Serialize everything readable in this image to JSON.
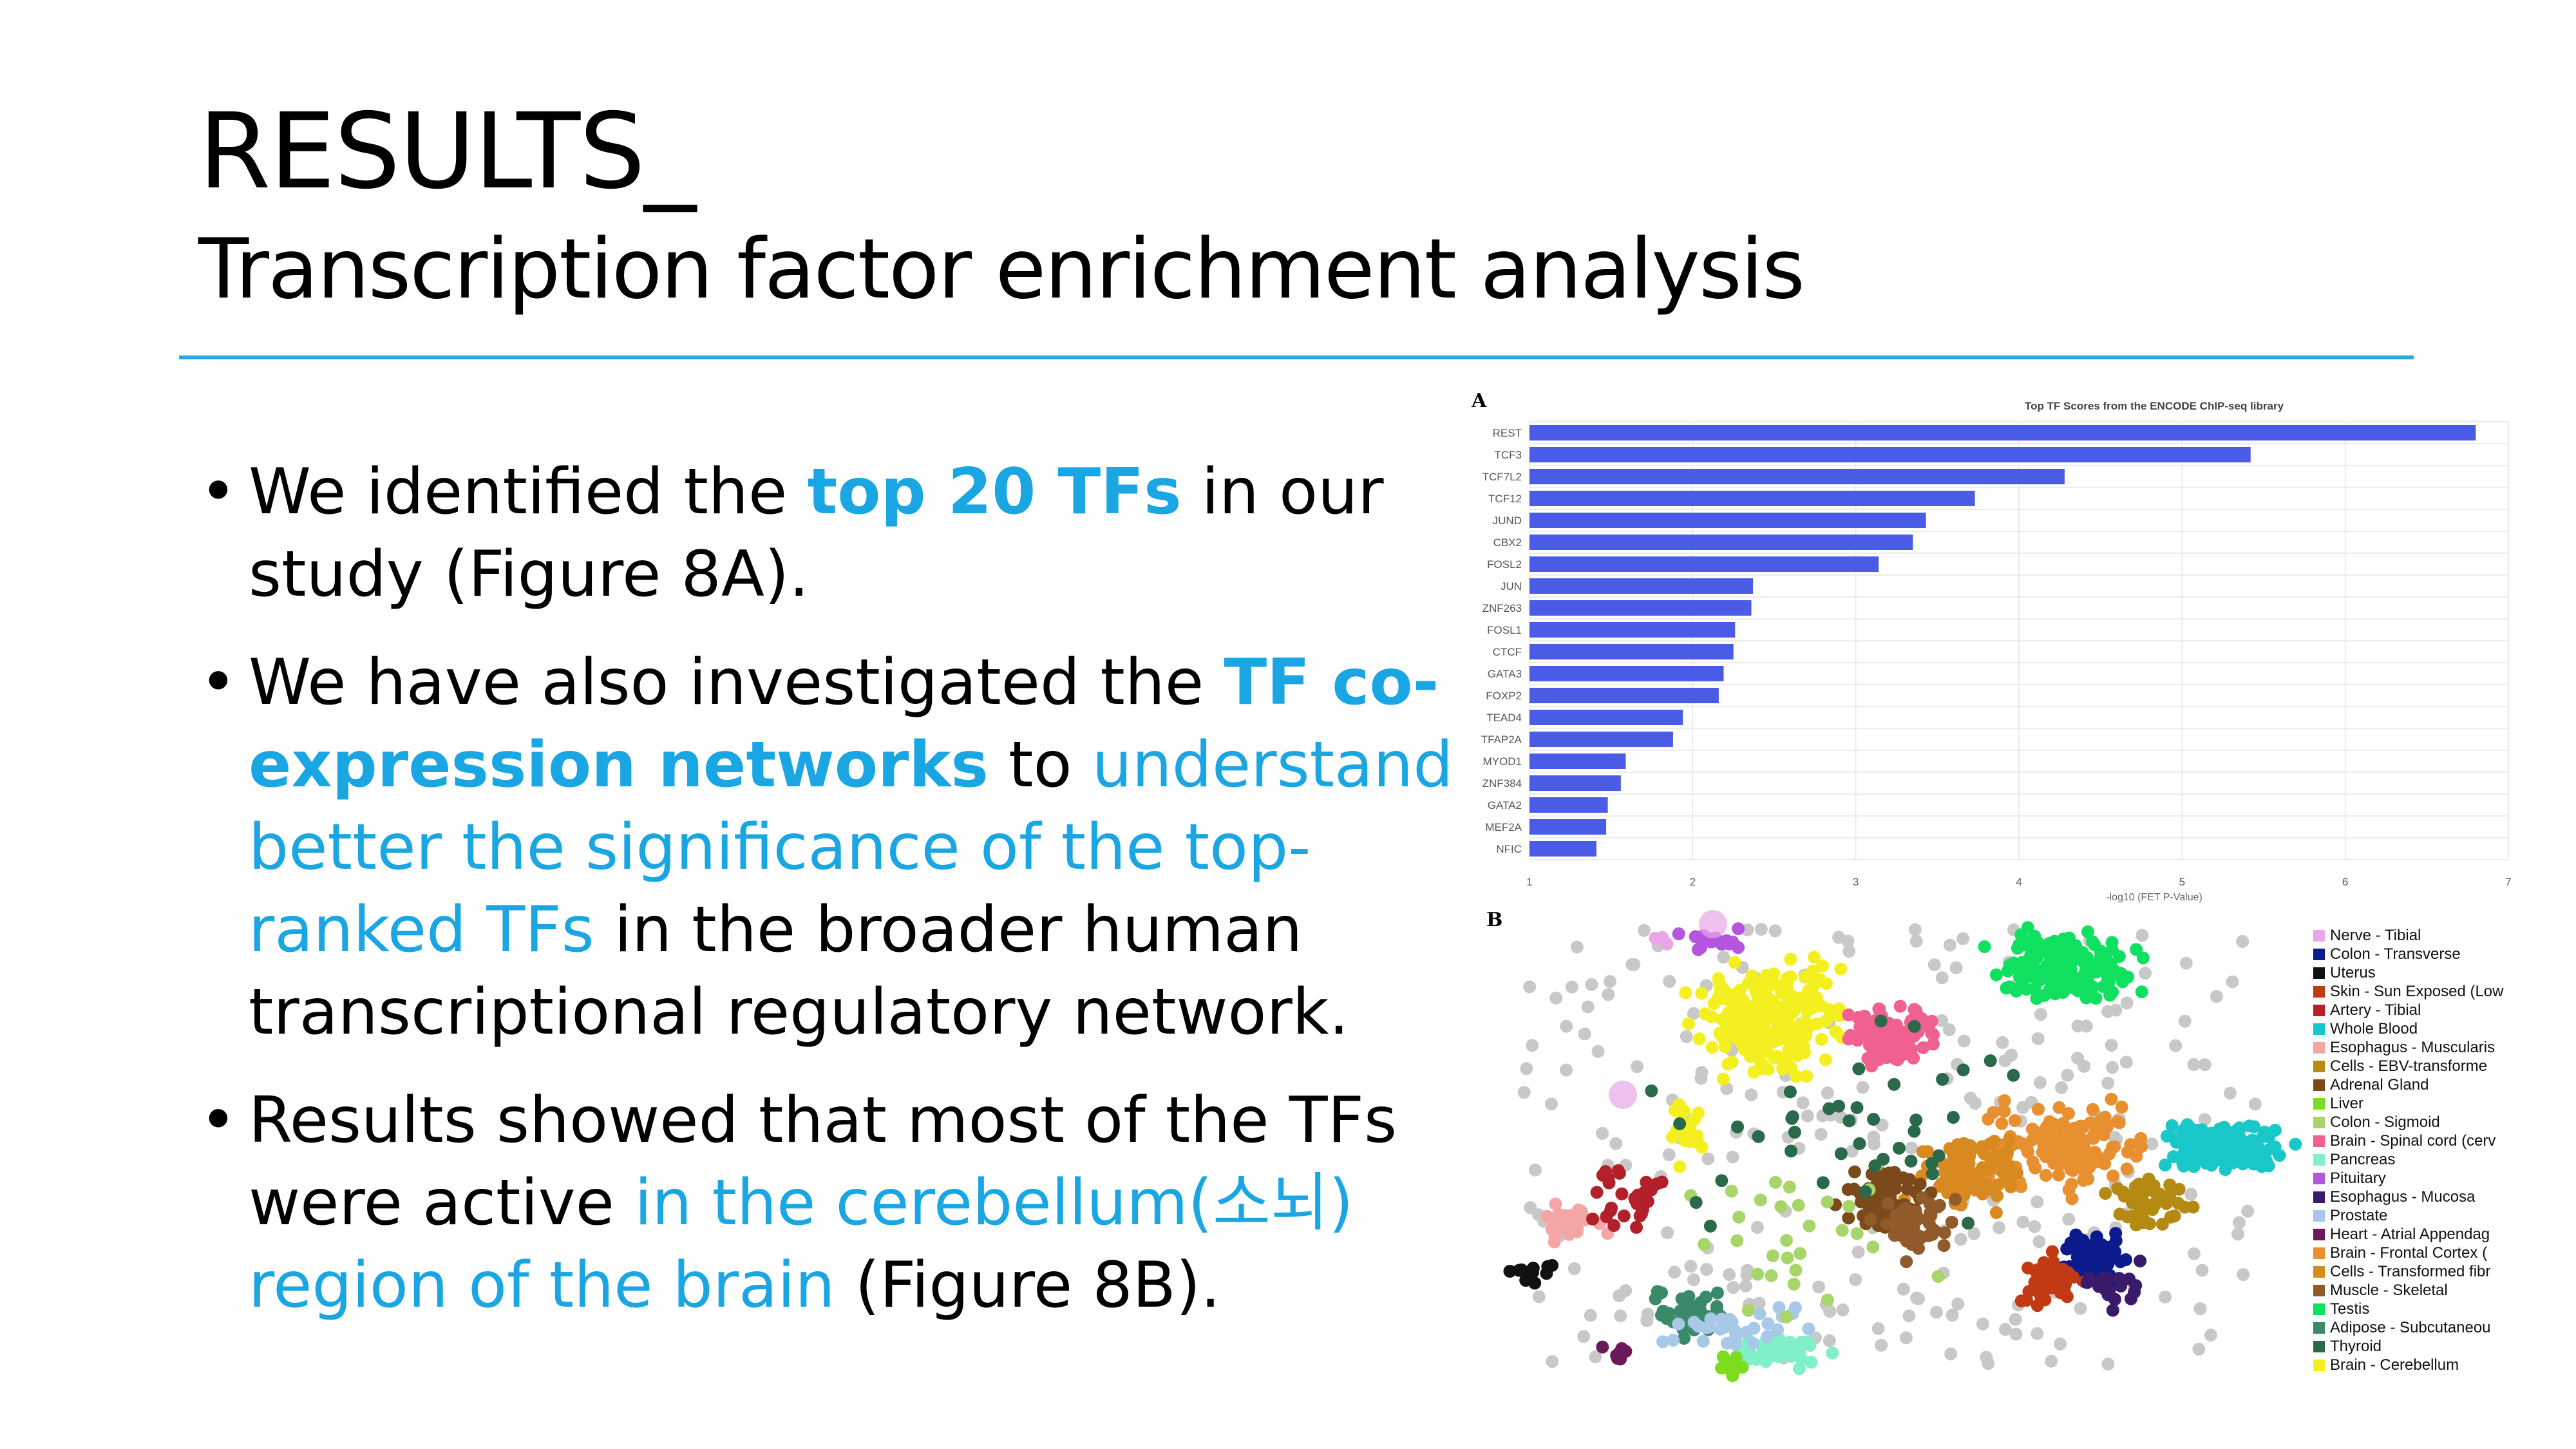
{
  "slide": {
    "title": "RESULTS_",
    "subtitle": "Transcription factor enrichment analysis"
  },
  "bullets": {
    "b1": {
      "t1": "We identified the ",
      "t2": "top 20 TFs",
      "t3": " in our study (Figure 8A)."
    },
    "b2": {
      "t1": "We have also investigated the ",
      "t2": "TF co-expression networks",
      "t3": " to ",
      "t4": "understand better the significance of the top-ranked TFs",
      "t5": " in the broader human transcriptional regulatory network."
    },
    "b3": {
      "t1": "Results showed that most of the TFs were active ",
      "t2": "in the cerebellum(소뇌) region of the brain",
      "t3": " (Figure 8B)."
    }
  },
  "figure_a": {
    "label": "A"
  },
  "figure_b": {
    "label": "B"
  },
  "chart_data": {
    "type": "bar",
    "orientation": "horizontal",
    "title": "Top TF Scores from the ENCODE ChIP-seq library",
    "xlabel": "-log10 (FET P-Value)",
    "ylabel": "",
    "xlim": [
      1,
      7
    ],
    "xticks": [
      "1",
      "2",
      "3",
      "4",
      "5",
      "6",
      "7"
    ],
    "categories": [
      "REST",
      "TCF3",
      "TCF7L2",
      "TCF12",
      "JUND",
      "CBX2",
      "FOSL2",
      "JUN",
      "ZNF263",
      "FOSL1",
      "CTCF",
      "GATA3",
      "FOXP2",
      "TEAD4",
      "TFAP2A",
      "MYOD1",
      "ZNF384",
      "GATA2",
      "MEF2A",
      "NFIC"
    ],
    "values": [
      6.8,
      5.42,
      4.28,
      3.73,
      3.43,
      3.35,
      3.14,
      2.37,
      2.36,
      2.26,
      2.25,
      2.19,
      2.16,
      1.94,
      1.88,
      1.59,
      1.56,
      1.48,
      1.47,
      1.41
    ],
    "grid": true,
    "color": "#4a5ce6"
  },
  "legend_b": [
    {
      "label": "Nerve - Tibial",
      "color": "#e8a6e8"
    },
    {
      "label": "Colon - Transverse",
      "color": "#0b1a8c"
    },
    {
      "label": "Uterus",
      "color": "#111111"
    },
    {
      "label": "Skin - Sun Exposed (Low",
      "color": "#c23a14"
    },
    {
      "label": "Artery - Tibial",
      "color": "#b3202a"
    },
    {
      "label": "Whole Blood",
      "color": "#18c7c7"
    },
    {
      "label": "Esophagus - Muscularis",
      "color": "#f4a6a6"
    },
    {
      "label": "Cells - EBV-transforme",
      "color": "#b48a12"
    },
    {
      "label": "Adrenal Gland",
      "color": "#7a4a1a"
    },
    {
      "label": "Liver",
      "color": "#7cdd1e"
    },
    {
      "label": "Colon - Sigmoid",
      "color": "#a8d56a"
    },
    {
      "label": "Brain - Spinal cord (cerv",
      "color": "#f06090"
    },
    {
      "label": "Pancreas",
      "color": "#7ff0c8"
    },
    {
      "label": "Pituitary",
      "color": "#b455e0"
    },
    {
      "label": "Esophagus - Mucosa",
      "color": "#3a1a6a"
    },
    {
      "label": "Prostate",
      "color": "#a8c8e8"
    },
    {
      "label": "Heart - Atrial Appendag",
      "color": "#6a1a5a"
    },
    {
      "label": "Brain - Frontal Cortex (",
      "color": "#e89030"
    },
    {
      "label": "Cells - Transformed fibr",
      "color": "#d88a20"
    },
    {
      "label": "Muscle - Skeletal",
      "color": "#905a2a"
    },
    {
      "label": "Testis",
      "color": "#10e060"
    },
    {
      "label": "Adipose - Subcutaneou",
      "color": "#3a8a6a"
    },
    {
      "label": "Thyroid",
      "color": "#2a6a4a"
    },
    {
      "label": "Brain - Cerebellum",
      "color": "#f4f020"
    }
  ]
}
